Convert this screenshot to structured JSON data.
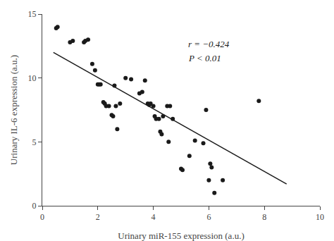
{
  "chart_data": {
    "type": "scatter",
    "x_label": "Urinary miR-155 expression (a.u.)",
    "y_label": "Urinary IL-6 expression (a.u.)",
    "series": [
      {
        "type": "scatter",
        "marker": "circle",
        "color": "#1a1a1a",
        "x": [
          0.5,
          0.55,
          1.0,
          1.1,
          1.5,
          1.55,
          1.65,
          1.8,
          1.9,
          2.0,
          2.05,
          2.1,
          2.2,
          2.25,
          2.3,
          2.4,
          2.5,
          2.55,
          2.6,
          2.65,
          2.7,
          2.8,
          3.0,
          3.2,
          3.5,
          3.6,
          3.7,
          3.8,
          3.85,
          3.9,
          4.0,
          4.05,
          4.1,
          4.2,
          4.25,
          4.3,
          4.35,
          4.5,
          4.55,
          4.6,
          4.7,
          5.0,
          5.05,
          5.3,
          5.5,
          5.8,
          5.9,
          6.0,
          6.05,
          6.1,
          6.2,
          6.5,
          7.8
        ],
        "values": [
          13.9,
          14.0,
          12.8,
          12.9,
          12.8,
          12.9,
          13.0,
          11.1,
          10.6,
          9.5,
          9.5,
          9.5,
          8.1,
          8.0,
          7.8,
          7.8,
          7.1,
          7.0,
          9.4,
          7.8,
          6.0,
          8.0,
          10.0,
          9.9,
          8.8,
          8.9,
          9.8,
          8.0,
          7.9,
          8.0,
          7.8,
          7.0,
          6.8,
          6.8,
          5.8,
          5.6,
          7.0,
          7.8,
          5.0,
          7.8,
          6.8,
          2.9,
          2.8,
          3.9,
          5.1,
          4.9,
          7.5,
          2.0,
          3.3,
          3.0,
          1.0,
          2.0,
          8.2
        ]
      },
      {
        "type": "line",
        "line_style": "solid",
        "color": "#1a1a1a",
        "x": [
          0.4,
          8.8
        ],
        "values": [
          12.0,
          1.7
        ]
      }
    ],
    "annotations": [
      {
        "text": "r = −0.424",
        "x": 5.2,
        "y": 13.2
      },
      {
        "text": "P < 0.01",
        "x": 5.2,
        "y": 12.1
      }
    ],
    "xlim": [
      0,
      10
    ],
    "ylim": [
      0,
      15
    ],
    "xticks": [
      0,
      2,
      4,
      6,
      8,
      10
    ],
    "yticks": [
      0,
      5,
      10,
      15
    ],
    "grid": false
  }
}
